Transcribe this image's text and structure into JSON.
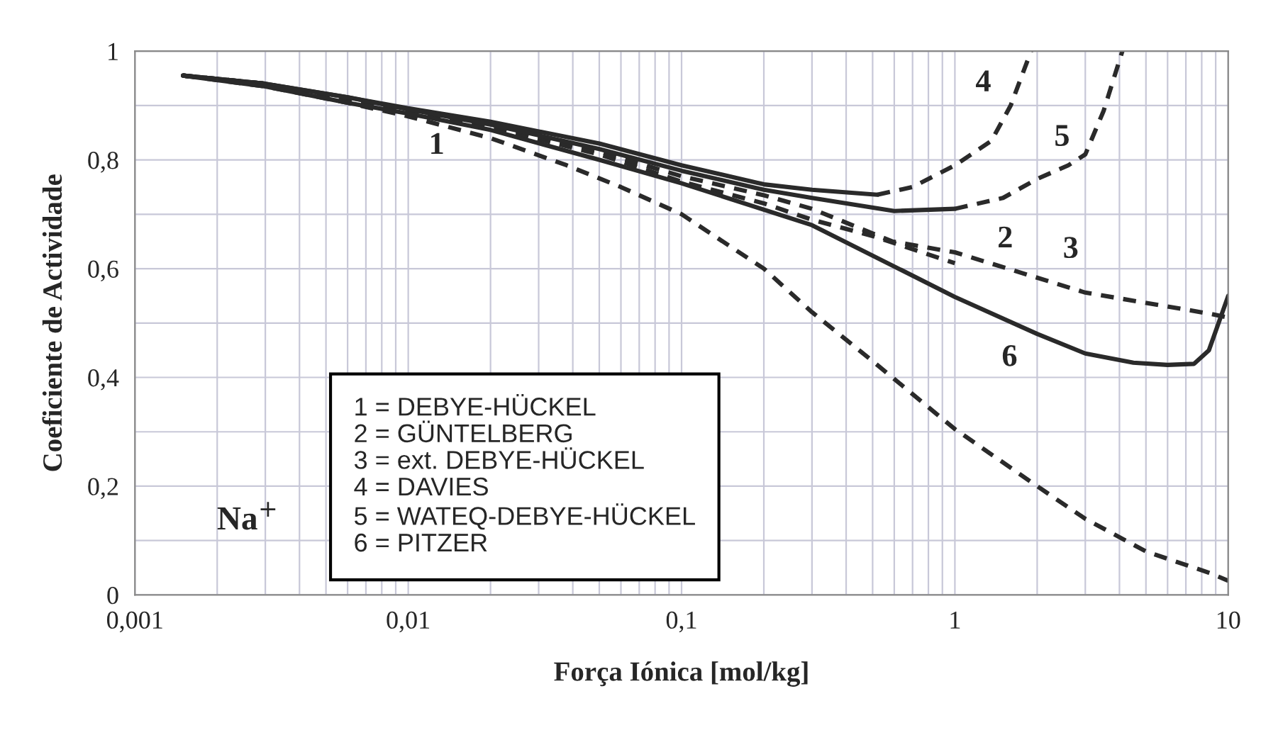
{
  "chart_data": {
    "type": "line",
    "xlabel": "Força Iónica [mol/kg]",
    "ylabel": "Coeficiente de Actividade",
    "log": "x",
    "xlim": [
      0.001,
      10
    ],
    "ylim": [
      0,
      1
    ],
    "xticks": [
      {
        "value": 0.001,
        "label": "0,001"
      },
      {
        "value": 0.01,
        "label": "0,01"
      },
      {
        "value": 0.1,
        "label": "0,1"
      },
      {
        "value": 1,
        "label": "1"
      },
      {
        "value": 10,
        "label": "10"
      }
    ],
    "yticks": [
      0,
      {
        "value": 0.2,
        "label": "0,2"
      },
      {
        "value": 0.4,
        "label": "0,4"
      },
      {
        "value": 0.6,
        "label": "0,6"
      },
      {
        "value": 0.8,
        "label": "0,8"
      },
      1
    ],
    "grid": true,
    "legend": false,
    "series": [
      {
        "color": "#2a2a2a",
        "line_style": "dashed",
        "x": [
          0.0015,
          0.003,
          0.006,
          0.01,
          0.02,
          0.038,
          0.06,
          0.1,
          0.2,
          0.3,
          0.5,
          1,
          2,
          3,
          5,
          8.6,
          10
        ],
        "values": [
          0.955,
          0.935,
          0.905,
          0.88,
          0.84,
          0.79,
          0.75,
          0.7,
          0.6,
          0.52,
          0.43,
          0.305,
          0.2,
          0.14,
          0.08,
          0.04,
          0.026
        ]
      },
      {
        "color": "#2a2a2a",
        "line_style": "dashed",
        "x": [
          0.0015,
          0.003,
          0.006,
          0.01,
          0.02,
          0.05,
          0.1,
          0.2,
          0.3,
          0.5,
          1
        ],
        "values": [
          0.955,
          0.94,
          0.91,
          0.89,
          0.86,
          0.81,
          0.76,
          0.72,
          0.69,
          0.66,
          0.61
        ]
      },
      {
        "color": "#2a2a2a",
        "line_style": "dashed",
        "x": [
          0.0015,
          0.003,
          0.006,
          0.01,
          0.02,
          0.05,
          0.1,
          0.2,
          0.3,
          0.59,
          1,
          3,
          8.6,
          10
        ],
        "values": [
          0.955,
          0.94,
          0.91,
          0.89,
          0.865,
          0.815,
          0.77,
          0.735,
          0.71,
          0.65,
          0.63,
          0.556,
          0.517,
          0.51
        ]
      },
      {
        "color": "#2a2a2a",
        "line_style": "solid",
        "x": [
          0.0015,
          0.003,
          0.006,
          0.01,
          0.02,
          0.05,
          0.1,
          0.2,
          0.3,
          0.52
        ],
        "values": [
          0.955,
          0.94,
          0.915,
          0.895,
          0.87,
          0.83,
          0.79,
          0.755,
          0.745,
          0.736
        ]
      },
      {
        "color": "#2a2a2a",
        "line_style": "dashed",
        "x": [
          0.52,
          0.7,
          1,
          1.36,
          1.6,
          1.9
        ],
        "values": [
          0.736,
          0.75,
          0.79,
          0.835,
          0.9,
          1.0
        ]
      },
      {
        "color": "#2a2a2a",
        "line_style": "solid",
        "x": [
          0.0015,
          0.003,
          0.006,
          0.01,
          0.02,
          0.05,
          0.1,
          0.2,
          0.3,
          0.6,
          1
        ],
        "values": [
          0.955,
          0.94,
          0.915,
          0.893,
          0.865,
          0.82,
          0.78,
          0.745,
          0.73,
          0.706,
          0.71
        ]
      },
      {
        "color": "#2a2a2a",
        "line_style": "dashed",
        "x": [
          1,
          1.5,
          2,
          2.6,
          3,
          3.5,
          4.1
        ],
        "values": [
          0.71,
          0.73,
          0.765,
          0.79,
          0.81,
          0.89,
          1.0
        ]
      },
      {
        "color": "#2a2a2a",
        "line_style": "solid",
        "x": [
          0.0015,
          0.003,
          0.006,
          0.01,
          0.02,
          0.05,
          0.1,
          0.3,
          1,
          2,
          3,
          4.5,
          6,
          7.5,
          8.5,
          10
        ],
        "values": [
          0.955,
          0.935,
          0.905,
          0.885,
          0.855,
          0.8,
          0.757,
          0.68,
          0.548,
          0.48,
          0.444,
          0.427,
          0.423,
          0.425,
          0.45,
          0.55
        ]
      }
    ],
    "annotations": [
      "1",
      "2",
      "3",
      "4",
      "5",
      "6",
      "Na$^{+}$",
      "1 = DEBYE-HÜCKEL",
      "2 = GÜNTELBERG",
      "3 = ext. DEBYE-HÜCKEL",
      "4 = DAVIES",
      "5 = WATEQ-DEBYE-HÜCKEL",
      "6 = PITZER"
    ]
  }
}
